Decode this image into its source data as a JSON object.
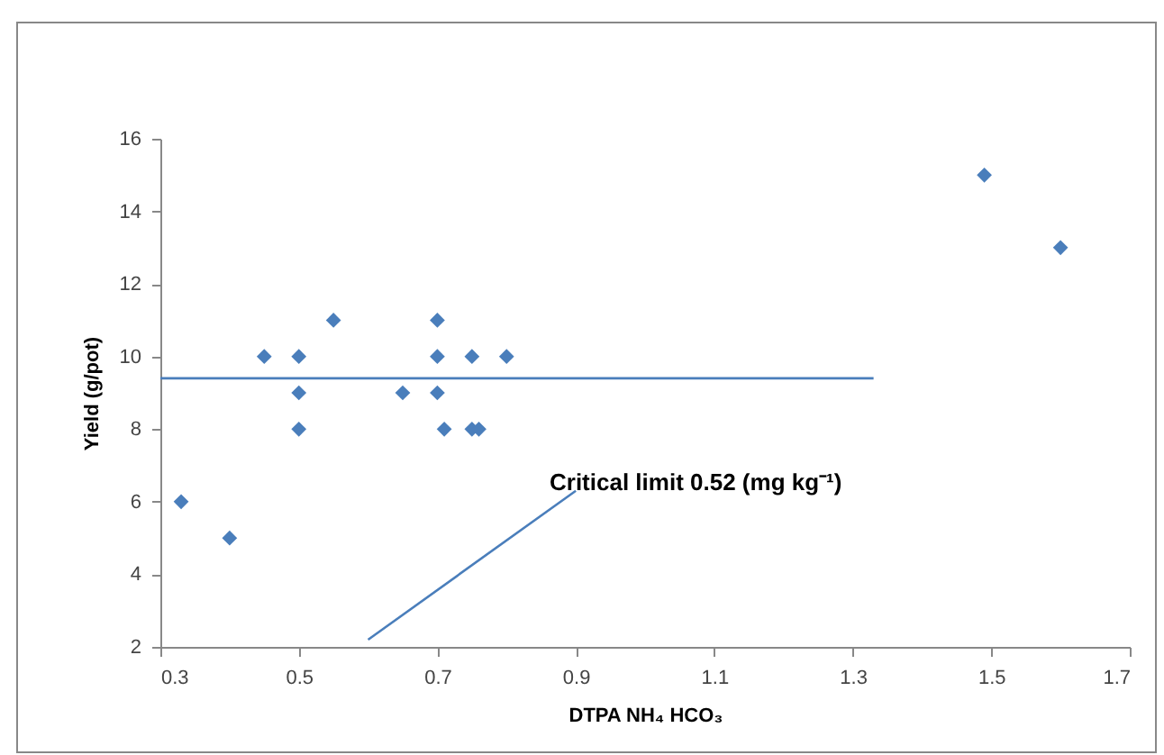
{
  "chart_data": {
    "type": "scatter",
    "xlabel": "DTPA NH₄ HCO₃",
    "ylabel": "Yield (g/pot)",
    "grid": false,
    "xlim": [
      0.3,
      1.7
    ],
    "xticks": [
      0.3,
      0.5,
      0.7,
      0.9,
      1.1,
      1.3,
      1.5,
      1.7
    ],
    "ylim": [
      2,
      16
    ],
    "yticks": [
      2,
      4,
      6,
      8,
      10,
      12,
      14,
      16
    ],
    "series": [
      {
        "marker": "diamond",
        "color": "#4a7ebb",
        "x": [
          0.33,
          0.4,
          0.45,
          0.5,
          0.5,
          0.5,
          0.55,
          0.65,
          0.7,
          0.7,
          0.7,
          0.71,
          0.75,
          0.75,
          0.76,
          0.8,
          1.49,
          1.6
        ],
        "values": [
          6,
          5,
          10,
          10,
          9,
          8,
          11,
          9,
          11,
          10,
          9,
          8,
          10,
          8,
          8,
          10,
          15,
          13
        ]
      },
      {
        "type": "line",
        "marker": "none",
        "color": "#4a7ebb",
        "x": [
          0.3,
          1.33
        ],
        "values": [
          9.4,
          9.4
        ]
      },
      {
        "type": "line",
        "marker": "none",
        "color": "#4a7ebb",
        "x": [
          0.6,
          0.9
        ],
        "values": [
          2.2,
          6.3
        ]
      }
    ],
    "annotations": [
      "Critical limit 0.52 (mg kg⁻¹)"
    ]
  }
}
